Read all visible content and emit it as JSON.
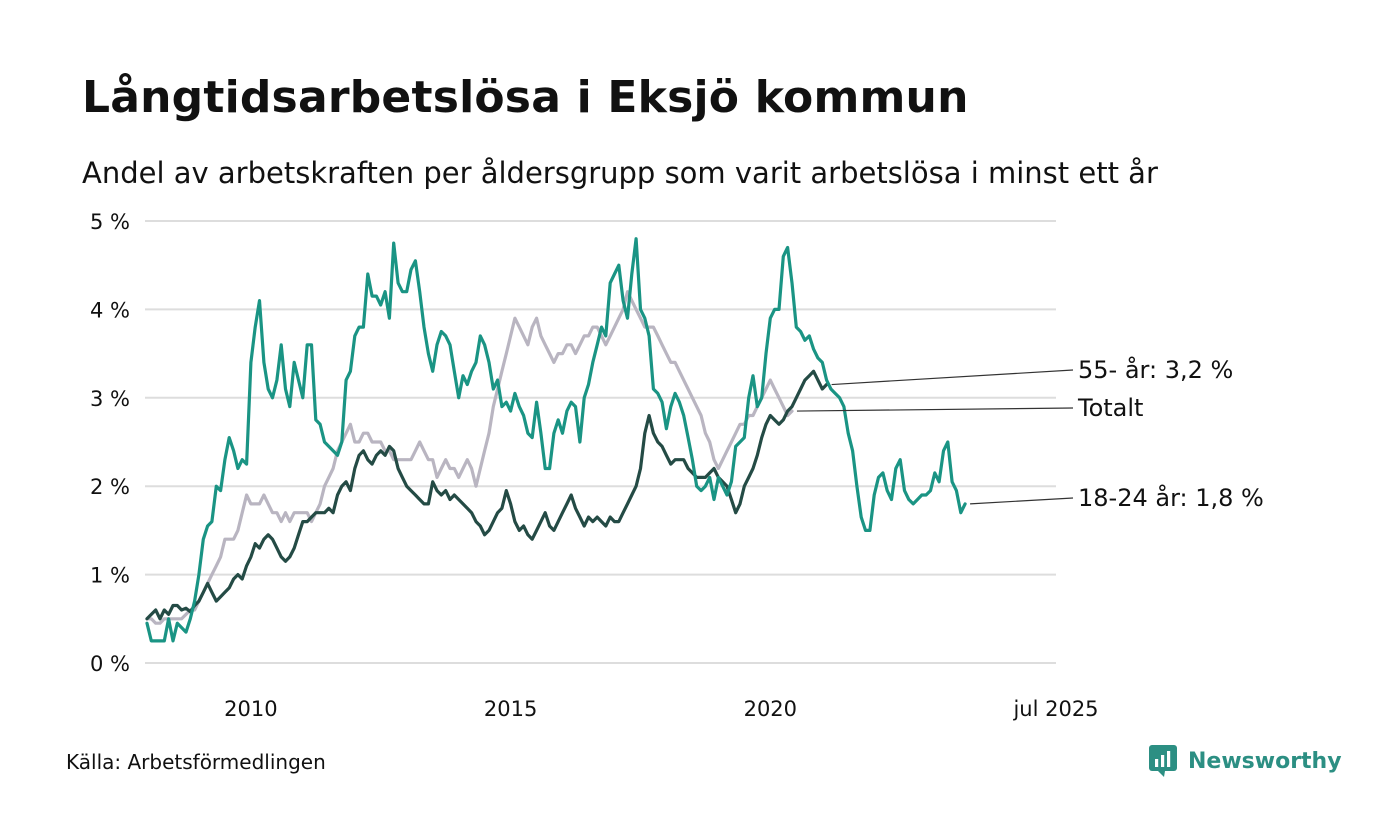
{
  "title": "Långtidsarbetslösa i Eksjö kommun",
  "subtitle": "Andel av arbetskraften per åldersgrupp som varit arbetslösa i minst ett år",
  "source": "Källa: Arbetsförmedlingen",
  "brand": "Newsworthy",
  "colors": {
    "grid": "#dddddd",
    "youth": "#1a9484",
    "old": "#244b45",
    "total": "#b9b5c1",
    "brand": "#2c8f83"
  },
  "chart_data": {
    "type": "line",
    "x_start_year": 2008,
    "points_per_year": 12,
    "ylim": [
      0,
      5
    ],
    "xlim": [
      2008.0,
      2025.5
    ],
    "y_ticks": [
      {
        "value": 0,
        "label": "0 %"
      },
      {
        "value": 1,
        "label": "1 %"
      },
      {
        "value": 2,
        "label": "2 %"
      },
      {
        "value": 3,
        "label": "3 %"
      },
      {
        "value": 4,
        "label": "4 %"
      },
      {
        "value": 5,
        "label": "5 %"
      }
    ],
    "x_ticks": [
      {
        "value": 2010,
        "label": "2010"
      },
      {
        "value": 2015,
        "label": "2015"
      },
      {
        "value": 2020,
        "label": "2020"
      },
      {
        "value": 2025.5,
        "label": "jul 2025"
      }
    ],
    "grid": true,
    "legend": "end-labels",
    "series": [
      {
        "name": "Totalt",
        "end_label": "Totalt",
        "color_key": "total",
        "values": [
          0.5,
          0.5,
          0.45,
          0.45,
          0.5,
          0.5,
          0.5,
          0.5,
          0.5,
          0.55,
          0.6,
          0.6,
          0.7,
          0.8,
          0.9,
          1.0,
          1.1,
          1.2,
          1.4,
          1.4,
          1.4,
          1.5,
          1.7,
          1.9,
          1.8,
          1.8,
          1.8,
          1.9,
          1.8,
          1.7,
          1.7,
          1.6,
          1.7,
          1.6,
          1.7,
          1.7,
          1.7,
          1.7,
          1.6,
          1.7,
          1.8,
          2.0,
          2.1,
          2.2,
          2.4,
          2.5,
          2.6,
          2.7,
          2.5,
          2.5,
          2.6,
          2.6,
          2.5,
          2.5,
          2.5,
          2.4,
          2.4,
          2.3,
          2.3,
          2.3,
          2.3,
          2.3,
          2.4,
          2.5,
          2.4,
          2.3,
          2.3,
          2.1,
          2.2,
          2.3,
          2.2,
          2.2,
          2.1,
          2.2,
          2.3,
          2.2,
          2.0,
          2.2,
          2.4,
          2.6,
          2.9,
          3.1,
          3.3,
          3.5,
          3.7,
          3.9,
          3.8,
          3.7,
          3.6,
          3.8,
          3.9,
          3.7,
          3.6,
          3.5,
          3.4,
          3.5,
          3.5,
          3.6,
          3.6,
          3.5,
          3.6,
          3.7,
          3.7,
          3.8,
          3.8,
          3.7,
          3.6,
          3.7,
          3.8,
          3.9,
          4.0,
          4.2,
          4.1,
          4.0,
          3.9,
          3.8,
          3.8,
          3.8,
          3.7,
          3.6,
          3.5,
          3.4,
          3.4,
          3.3,
          3.2,
          3.1,
          3.0,
          2.9,
          2.8,
          2.6,
          2.5,
          2.3,
          2.2,
          2.3,
          2.4,
          2.5,
          2.6,
          2.7,
          2.7,
          2.8,
          2.8,
          2.9,
          3.0,
          3.1,
          3.2,
          3.1,
          3.0,
          2.9,
          2.8,
          2.85
        ]
      },
      {
        "name": "55- år",
        "end_label": "55- år: 3,2 %",
        "color_key": "old",
        "values": [
          0.5,
          0.55,
          0.6,
          0.5,
          0.6,
          0.55,
          0.65,
          0.65,
          0.6,
          0.62,
          0.58,
          0.65,
          0.7,
          0.8,
          0.9,
          0.8,
          0.7,
          0.75,
          0.8,
          0.85,
          0.95,
          1.0,
          0.95,
          1.1,
          1.2,
          1.35,
          1.3,
          1.4,
          1.45,
          1.4,
          1.3,
          1.2,
          1.15,
          1.2,
          1.3,
          1.45,
          1.6,
          1.6,
          1.65,
          1.7,
          1.7,
          1.7,
          1.75,
          1.7,
          1.9,
          2.0,
          2.05,
          1.95,
          2.2,
          2.35,
          2.4,
          2.3,
          2.25,
          2.35,
          2.4,
          2.35,
          2.45,
          2.4,
          2.2,
          2.1,
          2.0,
          1.95,
          1.9,
          1.85,
          1.8,
          1.8,
          2.05,
          1.95,
          1.9,
          1.95,
          1.85,
          1.9,
          1.85,
          1.8,
          1.75,
          1.7,
          1.6,
          1.55,
          1.45,
          1.5,
          1.6,
          1.7,
          1.75,
          1.95,
          1.8,
          1.6,
          1.5,
          1.55,
          1.45,
          1.4,
          1.5,
          1.6,
          1.7,
          1.55,
          1.5,
          1.6,
          1.7,
          1.8,
          1.9,
          1.75,
          1.65,
          1.55,
          1.65,
          1.6,
          1.65,
          1.6,
          1.55,
          1.65,
          1.6,
          1.6,
          1.7,
          1.8,
          1.9,
          2.0,
          2.2,
          2.6,
          2.8,
          2.6,
          2.5,
          2.45,
          2.35,
          2.25,
          2.3,
          2.3,
          2.3,
          2.2,
          2.15,
          2.1,
          2.1,
          2.1,
          2.15,
          2.2,
          2.1,
          2.05,
          2.0,
          1.85,
          1.7,
          1.8,
          2.0,
          2.1,
          2.2,
          2.35,
          2.55,
          2.7,
          2.8,
          2.75,
          2.7,
          2.75,
          2.85,
          2.9,
          3.0,
          3.1,
          3.2,
          3.25,
          3.3,
          3.2,
          3.1,
          3.15
        ]
      },
      {
        "name": "18-24 år",
        "end_label": "18-24 år: 1,8 %",
        "color_key": "youth",
        "values": [
          0.45,
          0.25,
          0.25,
          0.25,
          0.25,
          0.5,
          0.25,
          0.45,
          0.4,
          0.35,
          0.5,
          0.7,
          1.0,
          1.4,
          1.55,
          1.6,
          2.0,
          1.95,
          2.3,
          2.55,
          2.4,
          2.2,
          2.3,
          2.25,
          3.4,
          3.8,
          4.1,
          3.4,
          3.1,
          3.0,
          3.2,
          3.6,
          3.1,
          2.9,
          3.4,
          3.2,
          3.0,
          3.6,
          3.6,
          2.75,
          2.7,
          2.5,
          2.45,
          2.4,
          2.35,
          2.5,
          3.2,
          3.3,
          3.7,
          3.8,
          3.8,
          4.4,
          4.15,
          4.15,
          4.05,
          4.2,
          3.9,
          4.75,
          4.3,
          4.2,
          4.2,
          4.45,
          4.55,
          4.2,
          3.8,
          3.5,
          3.3,
          3.6,
          3.75,
          3.7,
          3.6,
          3.3,
          3.0,
          3.25,
          3.15,
          3.3,
          3.4,
          3.7,
          3.6,
          3.4,
          3.1,
          3.2,
          2.9,
          2.95,
          2.85,
          3.05,
          2.9,
          2.8,
          2.6,
          2.55,
          2.95,
          2.6,
          2.2,
          2.2,
          2.6,
          2.75,
          2.6,
          2.85,
          2.95,
          2.9,
          2.5,
          3.0,
          3.15,
          3.4,
          3.6,
          3.8,
          3.7,
          4.3,
          4.4,
          4.5,
          4.1,
          3.9,
          4.4,
          4.8,
          4.0,
          3.9,
          3.7,
          3.1,
          3.05,
          2.95,
          2.65,
          2.9,
          3.05,
          2.95,
          2.8,
          2.55,
          2.3,
          2.0,
          1.95,
          2.0,
          2.1,
          1.85,
          2.1,
          2.0,
          1.9,
          2.05,
          2.45,
          2.5,
          2.55,
          3.0,
          3.25,
          2.9,
          3.0,
          3.5,
          3.9,
          4.0,
          4.0,
          4.6,
          4.7,
          4.3,
          3.8,
          3.75,
          3.65,
          3.7,
          3.55,
          3.45,
          3.4,
          3.2,
          3.1,
          3.05,
          3.0,
          2.9,
          2.6,
          2.4,
          2.0,
          1.65,
          1.5,
          1.5,
          1.9,
          2.1,
          2.15,
          1.95,
          1.85,
          2.2,
          2.3,
          1.95,
          1.85,
          1.8,
          1.85,
          1.9,
          1.9,
          1.95,
          2.15,
          2.05,
          2.4,
          2.5,
          2.05,
          1.95,
          1.7,
          1.8
        ]
      }
    ]
  }
}
